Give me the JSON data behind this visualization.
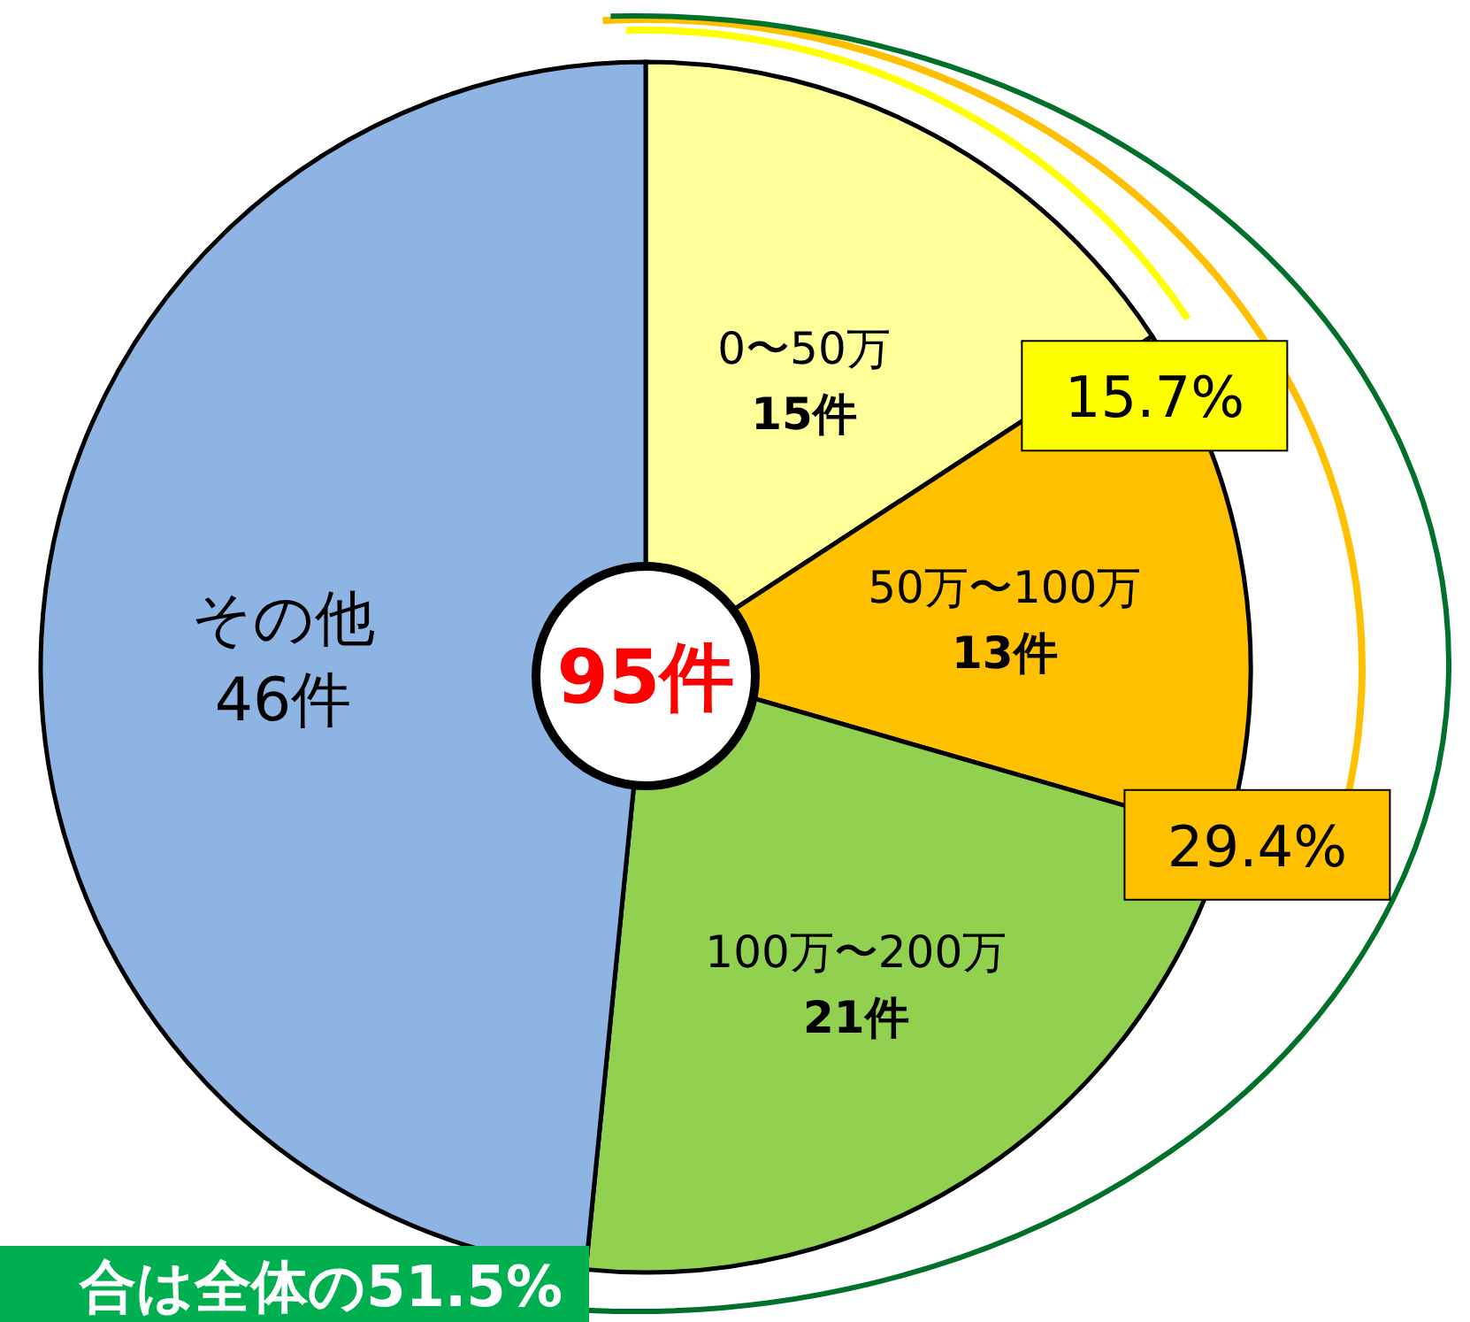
{
  "chart_data": {
    "type": "pie",
    "categories": [
      "0〜50万",
      "50万〜100万",
      "100万〜200万",
      "その他"
    ],
    "values": [
      15,
      13,
      21,
      46
    ],
    "value_labels": [
      "15件",
      "13件",
      "21件",
      "46件"
    ],
    "colors": [
      "#ffff99",
      "#ffc000",
      "#92d050",
      "#8eb4e3"
    ],
    "annotations": [
      "95件",
      "15.7%",
      "29.4%",
      "合は全体の51.5%"
    ]
  }
}
